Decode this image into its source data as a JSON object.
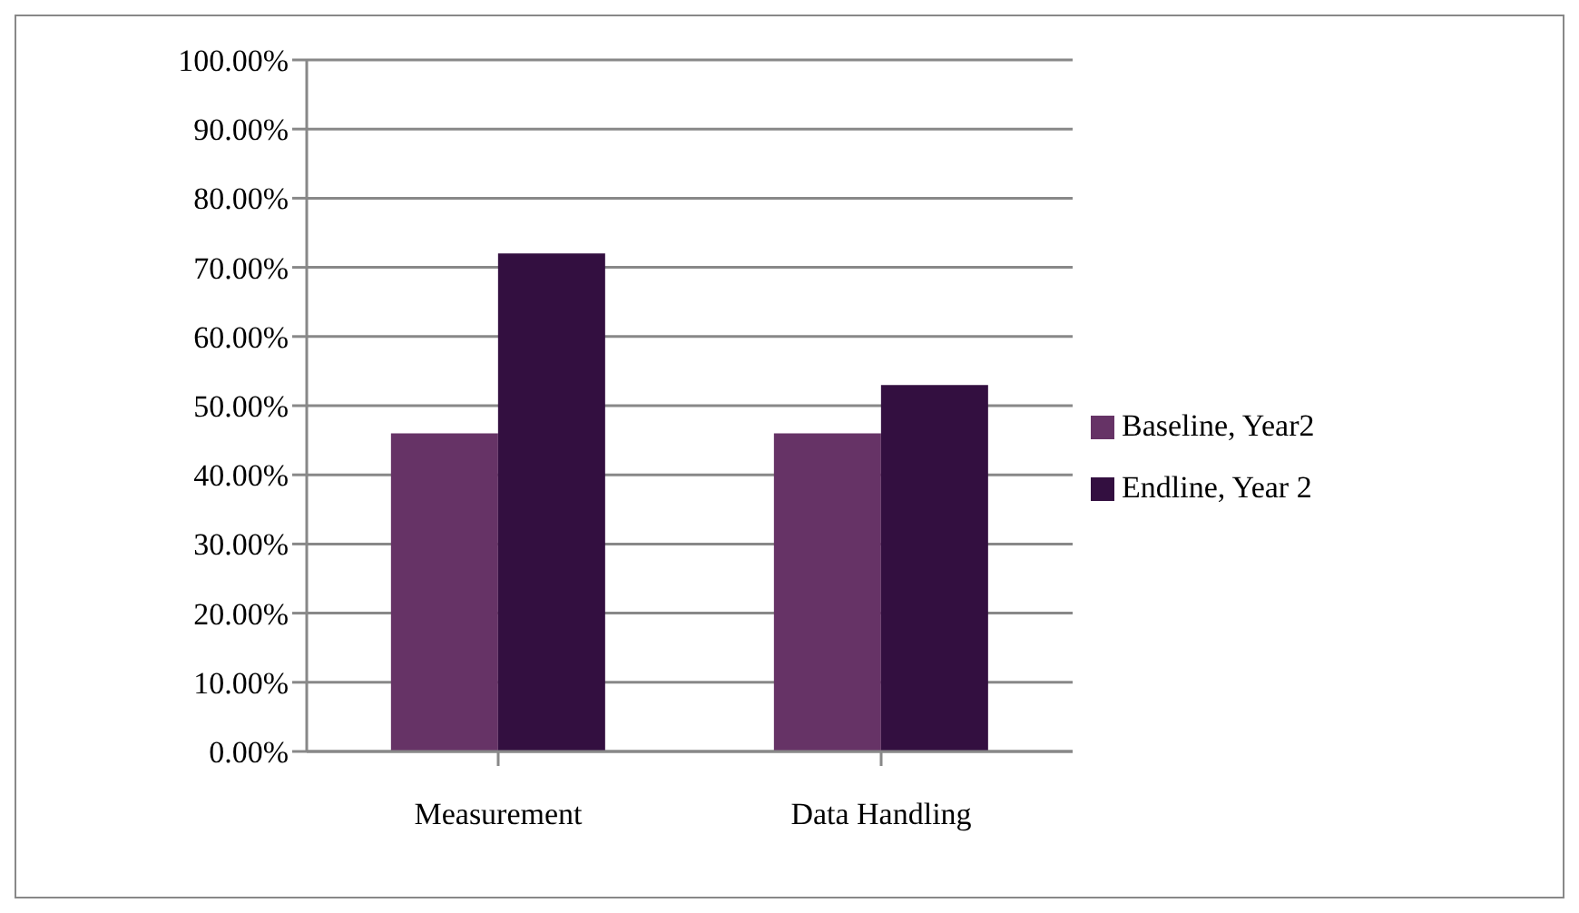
{
  "chart_data": {
    "type": "bar",
    "categories": [
      "Measurement",
      "Data Handling"
    ],
    "series": [
      {
        "name": "Baseline, Year2",
        "color": "#663366",
        "values": [
          46,
          46
        ]
      },
      {
        "name": "Endline, Year 2",
        "color": "#330f40",
        "values": [
          72,
          53
        ]
      }
    ],
    "ylim": [
      0,
      100
    ],
    "yticks": [
      {
        "value": 0,
        "label": "0.00%"
      },
      {
        "value": 10,
        "label": "10.00%"
      },
      {
        "value": 20,
        "label": "20.00%"
      },
      {
        "value": 30,
        "label": "30.00%"
      },
      {
        "value": 40,
        "label": "40.00%"
      },
      {
        "value": 50,
        "label": "50.00%"
      },
      {
        "value": 60,
        "label": "60.00%"
      },
      {
        "value": 70,
        "label": "70.00%"
      },
      {
        "value": 80,
        "label": "80.00%"
      },
      {
        "value": 90,
        "label": "90.00%"
      },
      {
        "value": 100,
        "label": "100.00%"
      }
    ],
    "grid": "y",
    "legend": "right"
  }
}
